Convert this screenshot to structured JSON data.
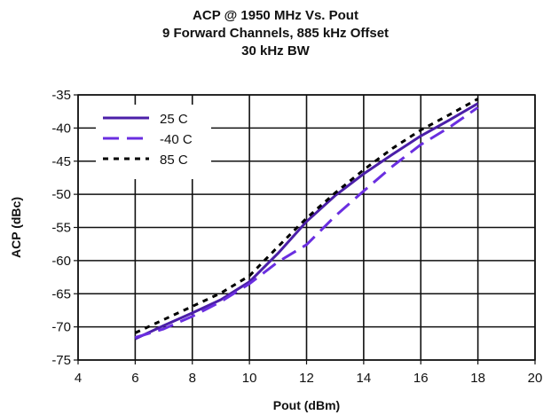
{
  "chart_data": {
    "type": "line",
    "title": "ACP @ 1950 MHz Vs. Pout",
    "subtitle_lines": [
      "9 Forward Channels, 885 kHz Offset",
      "30 kHz BW"
    ],
    "xlabel": "Pout (dBm)",
    "ylabel": "ACP (dBc)",
    "xlim": [
      4,
      20
    ],
    "ylim": [
      -75,
      -35
    ],
    "xticks": [
      4,
      6,
      8,
      10,
      12,
      14,
      16,
      18,
      20
    ],
    "yticks": [
      -35,
      -40,
      -45,
      -50,
      -55,
      -60,
      -65,
      -70,
      -75
    ],
    "grid": true,
    "legend_position": "top-left",
    "series": [
      {
        "name": "25 C",
        "style": "solid",
        "color": "#4b1fa8",
        "x": [
          6,
          7,
          8,
          9,
          10,
          11,
          12,
          13,
          14,
          15,
          16,
          17,
          18
        ],
        "y": [
          -71.8,
          -69.8,
          -67.9,
          -65.9,
          -63.2,
          -58.9,
          -54.1,
          -50.2,
          -46.9,
          -44.0,
          -41.2,
          -38.8,
          -36.3
        ]
      },
      {
        "name": "-40 C",
        "style": "dashed",
        "color": "#6a2ee0",
        "x": [
          6,
          7,
          8,
          9,
          10,
          11,
          12,
          13,
          14,
          15,
          16,
          17,
          18
        ],
        "y": [
          -71.6,
          -70.3,
          -68.4,
          -66.2,
          -63.5,
          -60.2,
          -57.6,
          -53.3,
          -49.5,
          -45.8,
          -42.5,
          -39.9,
          -36.9
        ]
      },
      {
        "name": "85 C",
        "style": "dotted",
        "color": "#000000",
        "x": [
          6,
          7,
          8,
          9,
          10,
          11,
          12,
          13,
          14,
          15,
          16,
          17,
          18
        ],
        "y": [
          -70.9,
          -68.9,
          -66.9,
          -64.9,
          -62.3,
          -57.9,
          -53.6,
          -49.8,
          -46.3,
          -43.1,
          -40.3,
          -38.0,
          -35.6
        ]
      }
    ]
  }
}
